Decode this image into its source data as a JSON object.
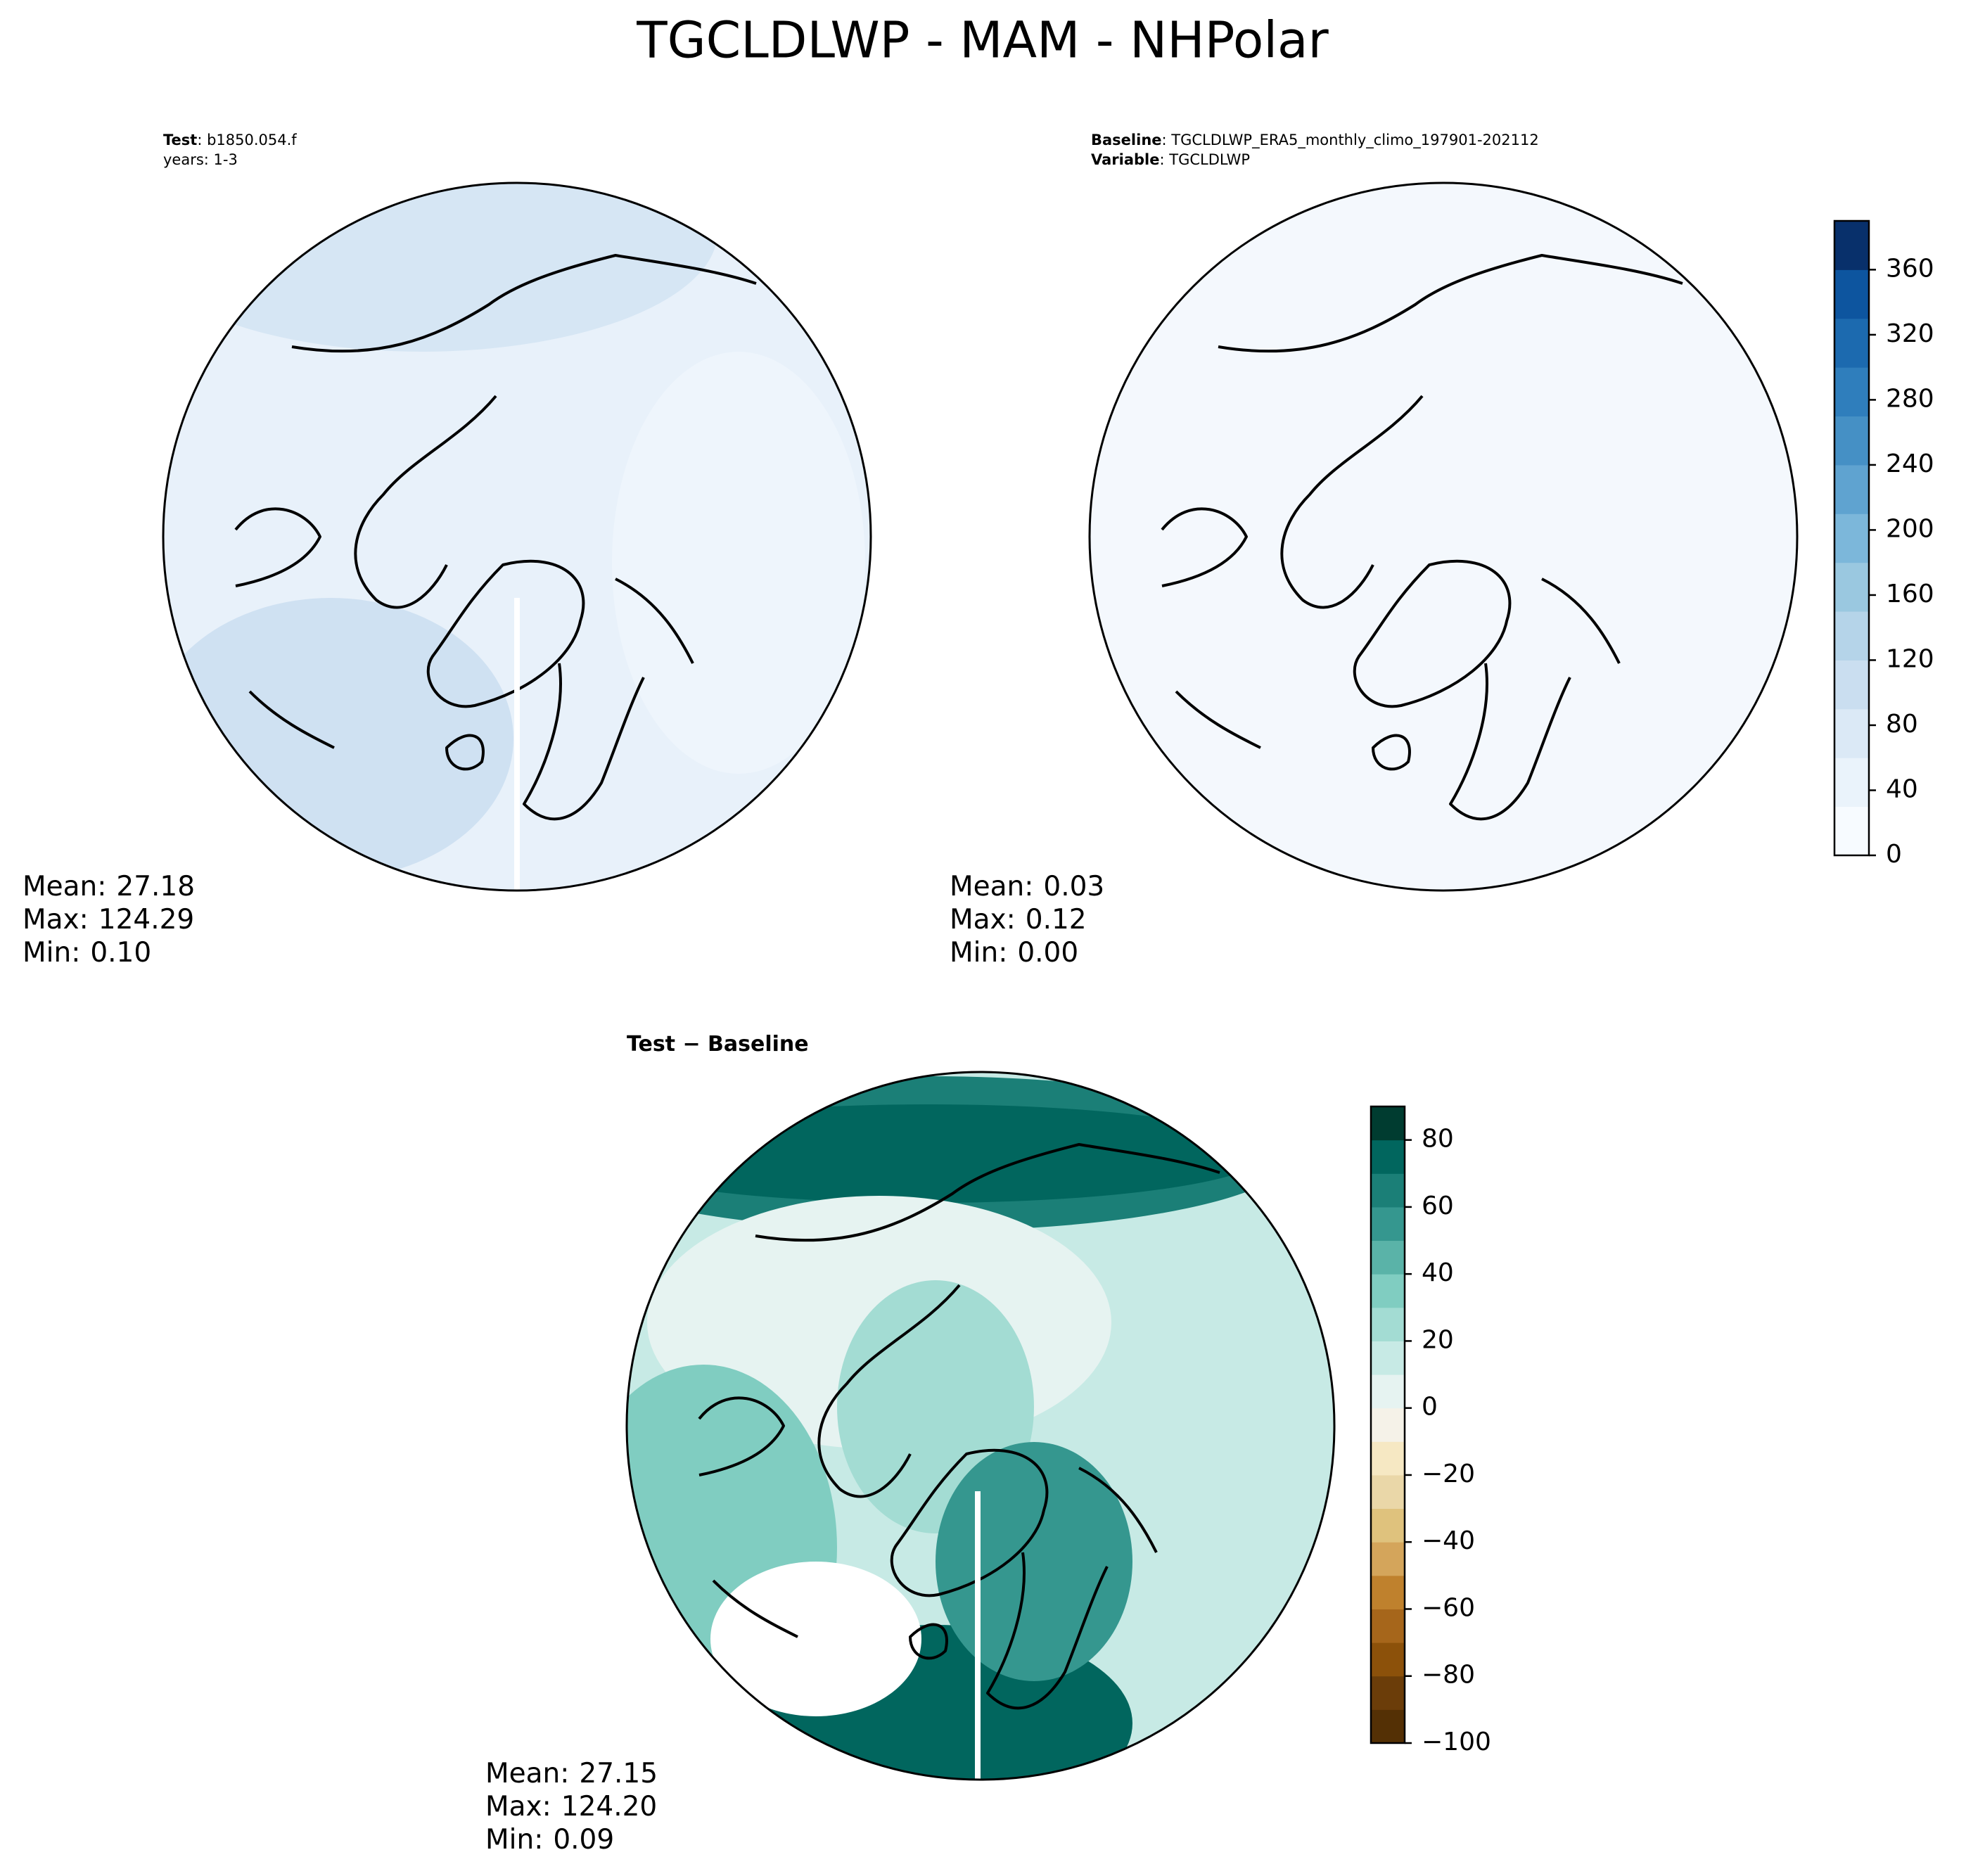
{
  "title": "TGCLDLWP - MAM - NHPolar",
  "panels": [
    {
      "header": [
        {
          "key": "Test",
          "value": ": b1850.054.f"
        },
        {
          "key": "",
          "value": "years: 1-3"
        }
      ],
      "stats": [
        {
          "label": "Mean:",
          "value": "27.18"
        },
        {
          "label": "Max:",
          "value": "124.29"
        },
        {
          "label": "Min:",
          "value": "0.10"
        }
      ]
    },
    {
      "header": [
        {
          "key": "Baseline",
          "value": ": TGCLDLWP_ERA5_monthly_climo_197901-202112"
        },
        {
          "key": "Variable",
          "value": ": TGCLDLWP"
        }
      ],
      "stats": [
        {
          "label": "Mean:",
          "value": "0.03"
        },
        {
          "label": "Max:",
          "value": "0.12"
        },
        {
          "label": "Min:",
          "value": "0.00"
        }
      ]
    },
    {
      "header": [
        {
          "key": "Test − Baseline",
          "value": ""
        }
      ],
      "stats": [
        {
          "label": "Mean:",
          "value": "27.15"
        },
        {
          "label": "Max:",
          "value": "124.20"
        },
        {
          "label": "Min:",
          "value": "0.09"
        }
      ]
    }
  ],
  "colorbars": [
    {
      "ylim": [
        0,
        390
      ],
      "ticks": [
        0,
        40,
        80,
        120,
        160,
        200,
        240,
        280,
        320,
        360
      ],
      "colors": [
        "#f7fbff",
        "#eaf3fb",
        "#dbe9f6",
        "#cadef0",
        "#b5d4e9",
        "#9ac8e0",
        "#7cb7da",
        "#5fa3d0",
        "#4590c5",
        "#2f7ebc",
        "#1c6aaf",
        "#0d559f",
        "#08306b"
      ]
    },
    {
      "ylim": [
        -100,
        90
      ],
      "ticks": [
        {
          "value": -100,
          "label": "−100"
        },
        {
          "value": -80,
          "label": "−80"
        },
        {
          "value": -60,
          "label": "−60"
        },
        {
          "value": -40,
          "label": "−40"
        },
        {
          "value": -20,
          "label": "−20"
        },
        0,
        20,
        40,
        60,
        80
      ],
      "colors": [
        "#543005",
        "#6b3d09",
        "#8c510a",
        "#a6661b",
        "#bf812d",
        "#d4a55b",
        "#dfc27d",
        "#ead7a8",
        "#f6e8c3",
        "#f5f2e8",
        "#e6f3f1",
        "#c7eae5",
        "#a3dcd3",
        "#80cdc1",
        "#5ab3a8",
        "#35978f",
        "#1b7f77",
        "#01665e",
        "#003c30"
      ]
    }
  ]
}
